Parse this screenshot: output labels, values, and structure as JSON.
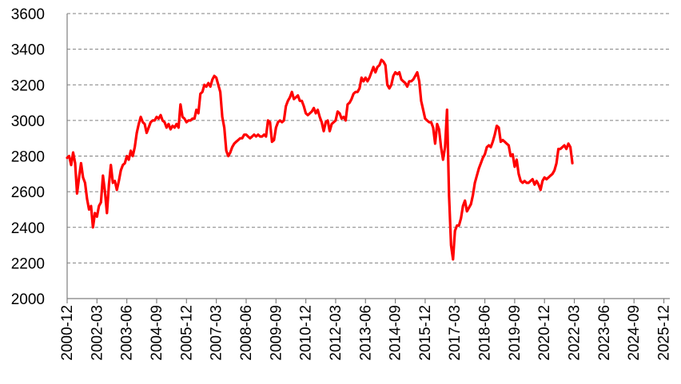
{
  "chart_data": {
    "type": "line",
    "title": "",
    "xlabel": "",
    "ylabel": "",
    "ylim": [
      2000,
      3600
    ],
    "yticks": [
      2000,
      2200,
      2400,
      2600,
      2800,
      3000,
      3200,
      3400,
      3600
    ],
    "xlim": [
      "2000-12",
      "2026-03"
    ],
    "xticks": [
      "2000-12",
      "2002-03",
      "2003-06",
      "2004-09",
      "2005-12",
      "2007-03",
      "2008-06",
      "2009-09",
      "2010-12",
      "2012-03",
      "2013-06",
      "2014-09",
      "2015-12",
      "2017-03",
      "2018-06",
      "2019-09",
      "2020-12",
      "2022-03",
      "2023-06",
      "2024-09",
      "2025-12"
    ],
    "grid": true,
    "legend": "none",
    "series": [
      {
        "color": "#FF0000",
        "points": [
          [
            "2000-12",
            2790
          ],
          [
            "2001-01",
            2800
          ],
          [
            "2001-02",
            2750
          ],
          [
            "2001-03",
            2820
          ],
          [
            "2001-04",
            2760
          ],
          [
            "2001-05",
            2590
          ],
          [
            "2001-06",
            2680
          ],
          [
            "2001-07",
            2760
          ],
          [
            "2001-08",
            2680
          ],
          [
            "2001-09",
            2650
          ],
          [
            "2001-10",
            2560
          ],
          [
            "2001-11",
            2500
          ],
          [
            "2001-12",
            2520
          ],
          [
            "2002-01",
            2400
          ],
          [
            "2002-02",
            2480
          ],
          [
            "2002-03",
            2460
          ],
          [
            "2002-04",
            2520
          ],
          [
            "2002-05",
            2540
          ],
          [
            "2002-06",
            2690
          ],
          [
            "2002-07",
            2600
          ],
          [
            "2002-08",
            2480
          ],
          [
            "2002-09",
            2640
          ],
          [
            "2002-10",
            2750
          ],
          [
            "2002-11",
            2650
          ],
          [
            "2002-12",
            2660
          ],
          [
            "2003-01",
            2610
          ],
          [
            "2003-02",
            2660
          ],
          [
            "2003-03",
            2720
          ],
          [
            "2003-04",
            2750
          ],
          [
            "2003-05",
            2760
          ],
          [
            "2003-06",
            2800
          ],
          [
            "2003-07",
            2780
          ],
          [
            "2003-08",
            2830
          ],
          [
            "2003-09",
            2800
          ],
          [
            "2003-10",
            2850
          ],
          [
            "2003-11",
            2930
          ],
          [
            "2003-12",
            2980
          ],
          [
            "2004-01",
            3020
          ],
          [
            "2004-02",
            2990
          ],
          [
            "2004-03",
            2980
          ],
          [
            "2004-04",
            2930
          ],
          [
            "2004-05",
            2960
          ],
          [
            "2004-06",
            2990
          ],
          [
            "2004-07",
            3000
          ],
          [
            "2004-08",
            3000
          ],
          [
            "2004-09",
            3020
          ],
          [
            "2004-10",
            3010
          ],
          [
            "2004-11",
            3030
          ],
          [
            "2004-12",
            3000
          ],
          [
            "2005-01",
            2990
          ],
          [
            "2005-02",
            2960
          ],
          [
            "2005-03",
            2980
          ],
          [
            "2005-04",
            2950
          ],
          [
            "2005-05",
            2970
          ],
          [
            "2005-06",
            2960
          ],
          [
            "2005-07",
            2980
          ],
          [
            "2005-08",
            2960
          ],
          [
            "2005-09",
            3090
          ],
          [
            "2005-10",
            3020
          ],
          [
            "2005-11",
            3010
          ],
          [
            "2005-12",
            2990
          ],
          [
            "2006-01",
            3000
          ],
          [
            "2006-02",
            3000
          ],
          [
            "2006-03",
            3010
          ],
          [
            "2006-04",
            3010
          ],
          [
            "2006-05",
            3060
          ],
          [
            "2006-06",
            3040
          ],
          [
            "2006-07",
            3150
          ],
          [
            "2006-08",
            3160
          ],
          [
            "2006-09",
            3200
          ],
          [
            "2006-10",
            3190
          ],
          [
            "2006-11",
            3210
          ],
          [
            "2006-12",
            3190
          ],
          [
            "2007-01",
            3230
          ],
          [
            "2007-02",
            3250
          ],
          [
            "2007-03",
            3240
          ],
          [
            "2007-04",
            3200
          ],
          [
            "2007-05",
            3160
          ],
          [
            "2007-06",
            3020
          ],
          [
            "2007-07",
            2960
          ],
          [
            "2007-08",
            2830
          ],
          [
            "2007-09",
            2800
          ],
          [
            "2007-10",
            2820
          ],
          [
            "2007-11",
            2850
          ],
          [
            "2007-12",
            2870
          ],
          [
            "2008-01",
            2880
          ],
          [
            "2008-02",
            2890
          ],
          [
            "2008-03",
            2900
          ],
          [
            "2008-04",
            2900
          ],
          [
            "2008-05",
            2920
          ],
          [
            "2008-06",
            2920
          ],
          [
            "2008-07",
            2910
          ],
          [
            "2008-08",
            2900
          ],
          [
            "2008-09",
            2910
          ],
          [
            "2008-10",
            2920
          ],
          [
            "2008-11",
            2910
          ],
          [
            "2008-12",
            2920
          ],
          [
            "2009-01",
            2910
          ],
          [
            "2009-02",
            2910
          ],
          [
            "2009-03",
            2920
          ],
          [
            "2009-04",
            2910
          ],
          [
            "2009-05",
            3000
          ],
          [
            "2009-06",
            2990
          ],
          [
            "2009-07",
            2880
          ],
          [
            "2009-08",
            2890
          ],
          [
            "2009-09",
            2960
          ],
          [
            "2009-10",
            2990
          ],
          [
            "2009-11",
            3000
          ],
          [
            "2009-12",
            2990
          ],
          [
            "2010-01",
            3000
          ],
          [
            "2010-02",
            3080
          ],
          [
            "2010-03",
            3110
          ],
          [
            "2010-04",
            3130
          ],
          [
            "2010-05",
            3160
          ],
          [
            "2010-06",
            3120
          ],
          [
            "2010-07",
            3130
          ],
          [
            "2010-08",
            3140
          ],
          [
            "2010-09",
            3110
          ],
          [
            "2010-10",
            3110
          ],
          [
            "2010-11",
            3080
          ],
          [
            "2010-12",
            3040
          ],
          [
            "2011-01",
            3030
          ],
          [
            "2011-02",
            3040
          ],
          [
            "2011-03",
            3050
          ],
          [
            "2011-04",
            3070
          ],
          [
            "2011-05",
            3040
          ],
          [
            "2011-06",
            3060
          ],
          [
            "2011-07",
            3020
          ],
          [
            "2011-08",
            2990
          ],
          [
            "2011-09",
            2940
          ],
          [
            "2011-10",
            2990
          ],
          [
            "2011-11",
            3000
          ],
          [
            "2011-12",
            2940
          ],
          [
            "2012-01",
            2980
          ],
          [
            "2012-02",
            2990
          ],
          [
            "2012-03",
            3000
          ],
          [
            "2012-04",
            3050
          ],
          [
            "2012-05",
            3040
          ],
          [
            "2012-06",
            3010
          ],
          [
            "2012-07",
            3020
          ],
          [
            "2012-08",
            3000
          ],
          [
            "2012-09",
            3090
          ],
          [
            "2012-10",
            3100
          ],
          [
            "2012-11",
            3120
          ],
          [
            "2012-12",
            3150
          ],
          [
            "2013-01",
            3160
          ],
          [
            "2013-02",
            3160
          ],
          [
            "2013-03",
            3180
          ],
          [
            "2013-04",
            3240
          ],
          [
            "2013-05",
            3220
          ],
          [
            "2013-06",
            3240
          ],
          [
            "2013-07",
            3220
          ],
          [
            "2013-08",
            3240
          ],
          [
            "2013-09",
            3270
          ],
          [
            "2013-10",
            3300
          ],
          [
            "2013-11",
            3270
          ],
          [
            "2013-12",
            3300
          ],
          [
            "2014-01",
            3310
          ],
          [
            "2014-02",
            3340
          ],
          [
            "2014-03",
            3330
          ],
          [
            "2014-04",
            3310
          ],
          [
            "2014-05",
            3200
          ],
          [
            "2014-06",
            3180
          ],
          [
            "2014-07",
            3200
          ],
          [
            "2014-08",
            3250
          ],
          [
            "2014-09",
            3270
          ],
          [
            "2014-10",
            3260
          ],
          [
            "2014-11",
            3270
          ],
          [
            "2014-12",
            3230
          ],
          [
            "2015-01",
            3220
          ],
          [
            "2015-02",
            3210
          ],
          [
            "2015-03",
            3190
          ],
          [
            "2015-04",
            3220
          ],
          [
            "2015-05",
            3220
          ],
          [
            "2015-06",
            3230
          ],
          [
            "2015-07",
            3250
          ],
          [
            "2015-08",
            3270
          ],
          [
            "2015-09",
            3220
          ],
          [
            "2015-10",
            3110
          ],
          [
            "2015-11",
            3060
          ],
          [
            "2015-12",
            3010
          ],
          [
            "2016-01",
            3000
          ],
          [
            "2016-02",
            2990
          ],
          [
            "2016-03",
            2990
          ],
          [
            "2016-04",
            2960
          ],
          [
            "2016-05",
            2870
          ],
          [
            "2016-06",
            2980
          ],
          [
            "2016-07",
            2950
          ],
          [
            "2016-08",
            2850
          ],
          [
            "2016-09",
            2780
          ],
          [
            "2016-10",
            2850
          ],
          [
            "2016-11",
            3060
          ],
          [
            "2016-12",
            2580
          ],
          [
            "2017-01",
            2300
          ],
          [
            "2017-02",
            2220
          ],
          [
            "2017-03",
            2380
          ],
          [
            "2017-04",
            2410
          ],
          [
            "2017-05",
            2410
          ],
          [
            "2017-06",
            2450
          ],
          [
            "2017-07",
            2520
          ],
          [
            "2017-08",
            2550
          ],
          [
            "2017-09",
            2490
          ],
          [
            "2017-10",
            2510
          ],
          [
            "2017-11",
            2530
          ],
          [
            "2017-12",
            2580
          ],
          [
            "2018-01",
            2650
          ],
          [
            "2018-02",
            2690
          ],
          [
            "2018-03",
            2730
          ],
          [
            "2018-04",
            2760
          ],
          [
            "2018-05",
            2790
          ],
          [
            "2018-06",
            2810
          ],
          [
            "2018-07",
            2850
          ],
          [
            "2018-08",
            2860
          ],
          [
            "2018-09",
            2850
          ],
          [
            "2018-10",
            2880
          ],
          [
            "2018-11",
            2920
          ],
          [
            "2018-12",
            2970
          ],
          [
            "2019-01",
            2960
          ],
          [
            "2019-02",
            2880
          ],
          [
            "2019-03",
            2890
          ],
          [
            "2019-04",
            2880
          ],
          [
            "2019-05",
            2870
          ],
          [
            "2019-06",
            2860
          ],
          [
            "2019-07",
            2800
          ],
          [
            "2019-08",
            2810
          ],
          [
            "2019-09",
            2740
          ],
          [
            "2019-10",
            2780
          ],
          [
            "2019-11",
            2700
          ],
          [
            "2019-12",
            2660
          ],
          [
            "2020-01",
            2650
          ],
          [
            "2020-02",
            2660
          ],
          [
            "2020-03",
            2650
          ],
          [
            "2020-04",
            2650
          ],
          [
            "2020-05",
            2660
          ],
          [
            "2020-06",
            2670
          ],
          [
            "2020-07",
            2640
          ],
          [
            "2020-08",
            2660
          ],
          [
            "2020-09",
            2640
          ],
          [
            "2020-10",
            2610
          ],
          [
            "2020-11",
            2660
          ],
          [
            "2020-12",
            2680
          ],
          [
            "2021-01",
            2670
          ],
          [
            "2021-02",
            2680
          ],
          [
            "2021-03",
            2690
          ],
          [
            "2021-04",
            2700
          ],
          [
            "2021-05",
            2720
          ],
          [
            "2021-06",
            2760
          ],
          [
            "2021-07",
            2840
          ],
          [
            "2021-08",
            2840
          ],
          [
            "2021-09",
            2850
          ],
          [
            "2021-10",
            2860
          ],
          [
            "2021-11",
            2840
          ],
          [
            "2021-12",
            2870
          ],
          [
            "2022-01",
            2850
          ],
          [
            "2022-02",
            2760
          ]
        ]
      }
    ]
  }
}
